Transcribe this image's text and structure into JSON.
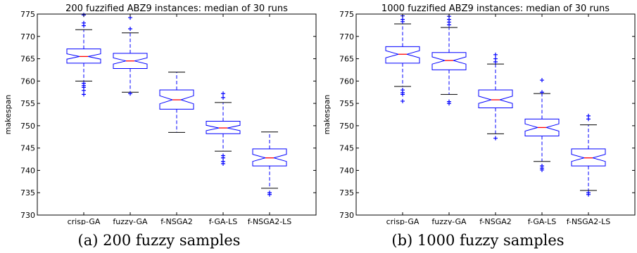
{
  "chart_data": [
    {
      "type": "box",
      "title": "200 fuzzified ABZ9 instances: median of 30 runs",
      "caption": "(a) 200 fuzzy samples",
      "xlabel": "",
      "ylabel": "makespan",
      "ylim": [
        730,
        775
      ],
      "yticks": [
        730,
        735,
        740,
        745,
        750,
        755,
        760,
        765,
        770,
        775
      ],
      "categories": [
        "crisp-GA",
        "fuzzy-GA",
        "f-NSGA2",
        "f-GA-LS",
        "f-NSGA2-LS"
      ],
      "boxes": [
        {
          "q1": 764.0,
          "median": 765.5,
          "q3": 767.2,
          "notch": [
            764.9,
            766.1
          ],
          "whisker_low": 760.0,
          "whisker_high": 771.5,
          "outliers": [
            759.5,
            759.0,
            758.6,
            757.9,
            757.0,
            772.4,
            773.0,
            774.8
          ]
        },
        {
          "q1": 762.8,
          "median": 764.5,
          "q3": 766.2,
          "notch": [
            763.8,
            765.2
          ],
          "whisker_low": 757.5,
          "whisker_high": 770.8,
          "outliers": [
            757.2,
            771.7,
            774.2
          ]
        },
        {
          "q1": 753.7,
          "median": 755.8,
          "q3": 758.0,
          "notch": [
            754.9,
            756.7
          ],
          "whisker_low": 748.5,
          "whisker_high": 762.0,
          "outliers": []
        },
        {
          "q1": 748.2,
          "median": 749.5,
          "q3": 751.0,
          "notch": [
            748.9,
            750.1
          ],
          "whisker_low": 744.3,
          "whisker_high": 755.2,
          "outliers": [
            743.3,
            742.8,
            742.0,
            741.5,
            756.3,
            757.2
          ]
        },
        {
          "q1": 741.0,
          "median": 742.8,
          "q3": 744.8,
          "notch": [
            742.0,
            743.6
          ],
          "whisker_low": 736.0,
          "whisker_high": 748.6,
          "outliers": [
            735.0,
            734.6
          ]
        }
      ]
    },
    {
      "type": "box",
      "title": "1000 fuzzified ABZ9 instances: median of 30 runs",
      "caption": "(b) 1000 fuzzy samples",
      "xlabel": "",
      "ylabel": "makespan",
      "ylim": [
        730,
        775
      ],
      "yticks": [
        730,
        735,
        740,
        745,
        750,
        755,
        760,
        765,
        770,
        775
      ],
      "categories": [
        "crisp-GA",
        "fuzzy-GA",
        "f-NSGA2",
        "f-GA-LS",
        "f-NSGA2-LS"
      ],
      "boxes": [
        {
          "q1": 764.0,
          "median": 766.0,
          "q3": 767.7,
          "notch": [
            765.2,
            766.8
          ],
          "whisker_low": 758.8,
          "whisker_high": 772.8,
          "outliers": [
            758.0,
            757.4,
            757.0,
            755.5,
            773.3,
            773.8,
            774.6
          ]
        },
        {
          "q1": 762.5,
          "median": 764.6,
          "q3": 766.4,
          "notch": [
            763.8,
            765.4
          ],
          "whisker_low": 757.0,
          "whisker_high": 772.0,
          "outliers": [
            755.4,
            755.0,
            772.6,
            773.2,
            773.8,
            774.5
          ]
        },
        {
          "q1": 754.0,
          "median": 755.8,
          "q3": 758.0,
          "notch": [
            755.0,
            756.6
          ],
          "whisker_low": 748.2,
          "whisker_high": 763.8,
          "outliers": [
            747.2,
            764.3,
            765.0,
            765.9
          ]
        },
        {
          "q1": 747.7,
          "median": 749.6,
          "q3": 751.5,
          "notch": [
            748.8,
            750.4
          ],
          "whisker_low": 742.0,
          "whisker_high": 757.2,
          "outliers": [
            741.0,
            740.5,
            740.1,
            757.5,
            760.2
          ]
        },
        {
          "q1": 741.0,
          "median": 742.8,
          "q3": 744.8,
          "notch": [
            742.0,
            743.6
          ],
          "whisker_low": 735.5,
          "whisker_high": 750.2,
          "outliers": [
            735.0,
            734.6,
            751.5,
            752.2
          ]
        }
      ]
    }
  ]
}
